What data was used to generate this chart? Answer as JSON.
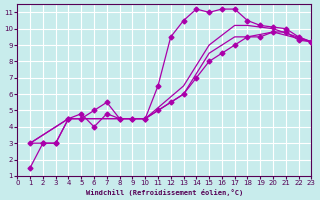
{
  "xlabel": "Windchill (Refroidissement éolien,°C)",
  "ylabel": "",
  "bg_color": "#c8ecec",
  "grid_color": "#ffffff",
  "line_color": "#aa00aa",
  "xlim": [
    0,
    23
  ],
  "ylim": [
    1,
    11.5
  ],
  "xticks": [
    0,
    1,
    2,
    3,
    4,
    5,
    6,
    7,
    8,
    9,
    10,
    11,
    12,
    13,
    14,
    15,
    16,
    17,
    18,
    19,
    20,
    21,
    22,
    23
  ],
  "yticks": [
    1,
    2,
    3,
    4,
    5,
    6,
    7,
    8,
    9,
    10,
    11
  ],
  "line1_x": [
    1,
    2,
    3,
    4,
    5,
    6,
    7,
    8,
    9,
    10,
    11,
    12,
    13,
    14,
    15,
    16,
    17,
    18,
    19,
    20,
    21,
    22,
    23
  ],
  "line1_y": [
    1.5,
    3.0,
    3.0,
    4.5,
    4.5,
    5.0,
    5.5,
    4.5,
    4.5,
    4.5,
    6.5,
    9.5,
    10.5,
    11.2,
    11.0,
    11.2,
    11.2,
    10.5,
    10.2,
    10.1,
    10.0,
    9.5,
    9.2
  ],
  "line2_x": [
    1,
    2,
    3,
    4,
    5,
    6,
    7,
    8,
    9,
    10,
    11,
    12,
    13,
    14,
    15,
    16,
    17,
    18,
    19,
    20,
    21,
    22,
    23
  ],
  "line2_y": [
    3.0,
    3.0,
    3.0,
    4.5,
    4.8,
    4.0,
    4.8,
    4.5,
    4.5,
    4.5,
    5.0,
    5.5,
    6.0,
    7.0,
    8.0,
    8.5,
    9.0,
    9.5,
    9.5,
    9.8,
    9.8,
    9.3,
    9.2
  ],
  "line3_x": [
    1,
    4,
    10,
    13,
    15,
    17,
    18,
    20,
    23
  ],
  "line3_y": [
    3.0,
    4.5,
    4.5,
    6.5,
    9.0,
    10.2,
    10.2,
    10.0,
    9.2
  ],
  "line4_x": [
    1,
    4,
    10,
    13,
    15,
    17,
    18,
    20,
    23
  ],
  "line4_y": [
    3.0,
    4.5,
    4.5,
    6.0,
    8.5,
    9.5,
    9.5,
    9.8,
    9.2
  ]
}
